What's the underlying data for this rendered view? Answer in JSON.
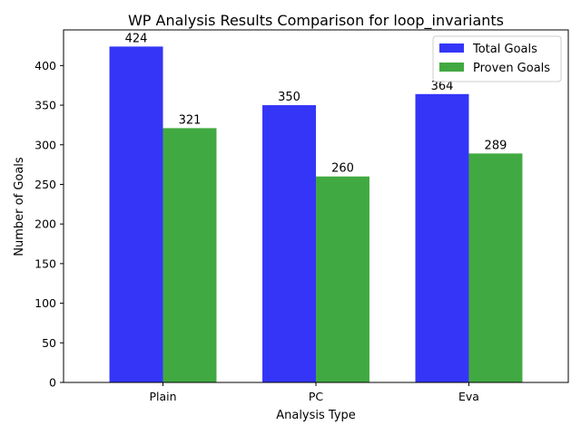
{
  "chart_data": {
    "type": "bar",
    "title": "WP Analysis Results Comparison for loop_invariants",
    "xlabel": "Analysis Type",
    "ylabel": "Number of Goals",
    "categories": [
      "Plain",
      "PC",
      "Eva"
    ],
    "series": [
      {
        "name": "Total Goals",
        "values": [
          424,
          350,
          364
        ],
        "color": "#1f1ff7"
      },
      {
        "name": "Proven Goals",
        "values": [
          321,
          260,
          289
        ],
        "color": "#2ca02c"
      }
    ],
    "ylim": [
      0,
      445
    ],
    "yticks": [
      0,
      50,
      100,
      150,
      200,
      250,
      300,
      350,
      400
    ],
    "grid": false,
    "legend": "top-right",
    "data_labels": true
  }
}
